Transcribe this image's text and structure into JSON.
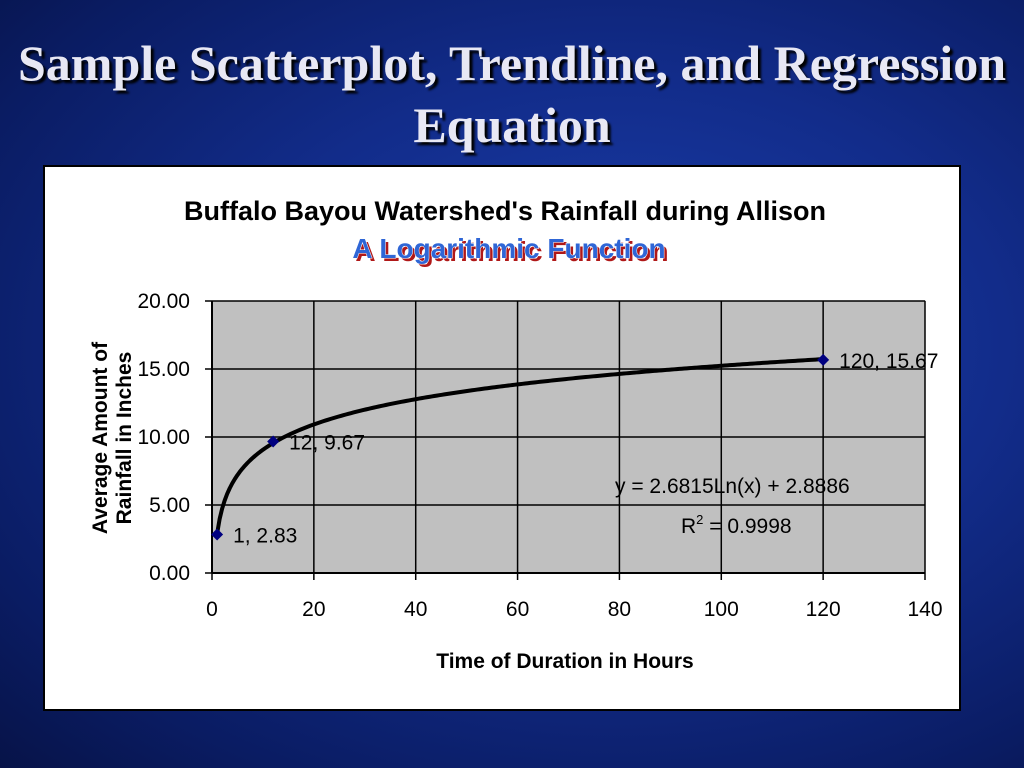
{
  "slide": {
    "title": "Sample Scatterplot, Trendline, and Regression Equation"
  },
  "colors": {
    "background": "#122c8a",
    "plot_area": "#c0c0c0",
    "marker": "#000080",
    "trendline": "#000000",
    "subtitle": "#2f66d6"
  },
  "chart_data": {
    "type": "scatter",
    "title": "Buffalo Bayou Watershed's Rainfall during Allison",
    "subtitle": "A Logarithmic Function",
    "xlabel": "Time of Duration in Hours",
    "ylabel": [
      "Average Amount of",
      "Rainfall in Inches"
    ],
    "xlim": [
      0,
      140
    ],
    "ylim": [
      0,
      20
    ],
    "x_ticks": [
      0,
      20,
      40,
      60,
      80,
      100,
      120,
      140
    ],
    "y_ticks": [
      0,
      5,
      10,
      15,
      20
    ],
    "y_tick_labels": [
      "0.00",
      "5.00",
      "10.00",
      "15.00",
      "20.00"
    ],
    "grid": true,
    "legend": "none",
    "points": [
      {
        "x": 1,
        "y": 2.83,
        "label": "1, 2.83"
      },
      {
        "x": 12,
        "y": 9.67,
        "label": "12, 9.67"
      },
      {
        "x": 120,
        "y": 15.67,
        "label": "120, 15.67"
      }
    ],
    "trendline": {
      "type": "logarithmic",
      "a": 2.6815,
      "b": 2.8886,
      "x_range": [
        1,
        120
      ]
    },
    "annotations": {
      "equation": "y = 2.6815Ln(x) + 2.8886",
      "r2_prefix": "R",
      "r2_superscript": "2",
      "r2_suffix": " = 0.9998"
    }
  }
}
